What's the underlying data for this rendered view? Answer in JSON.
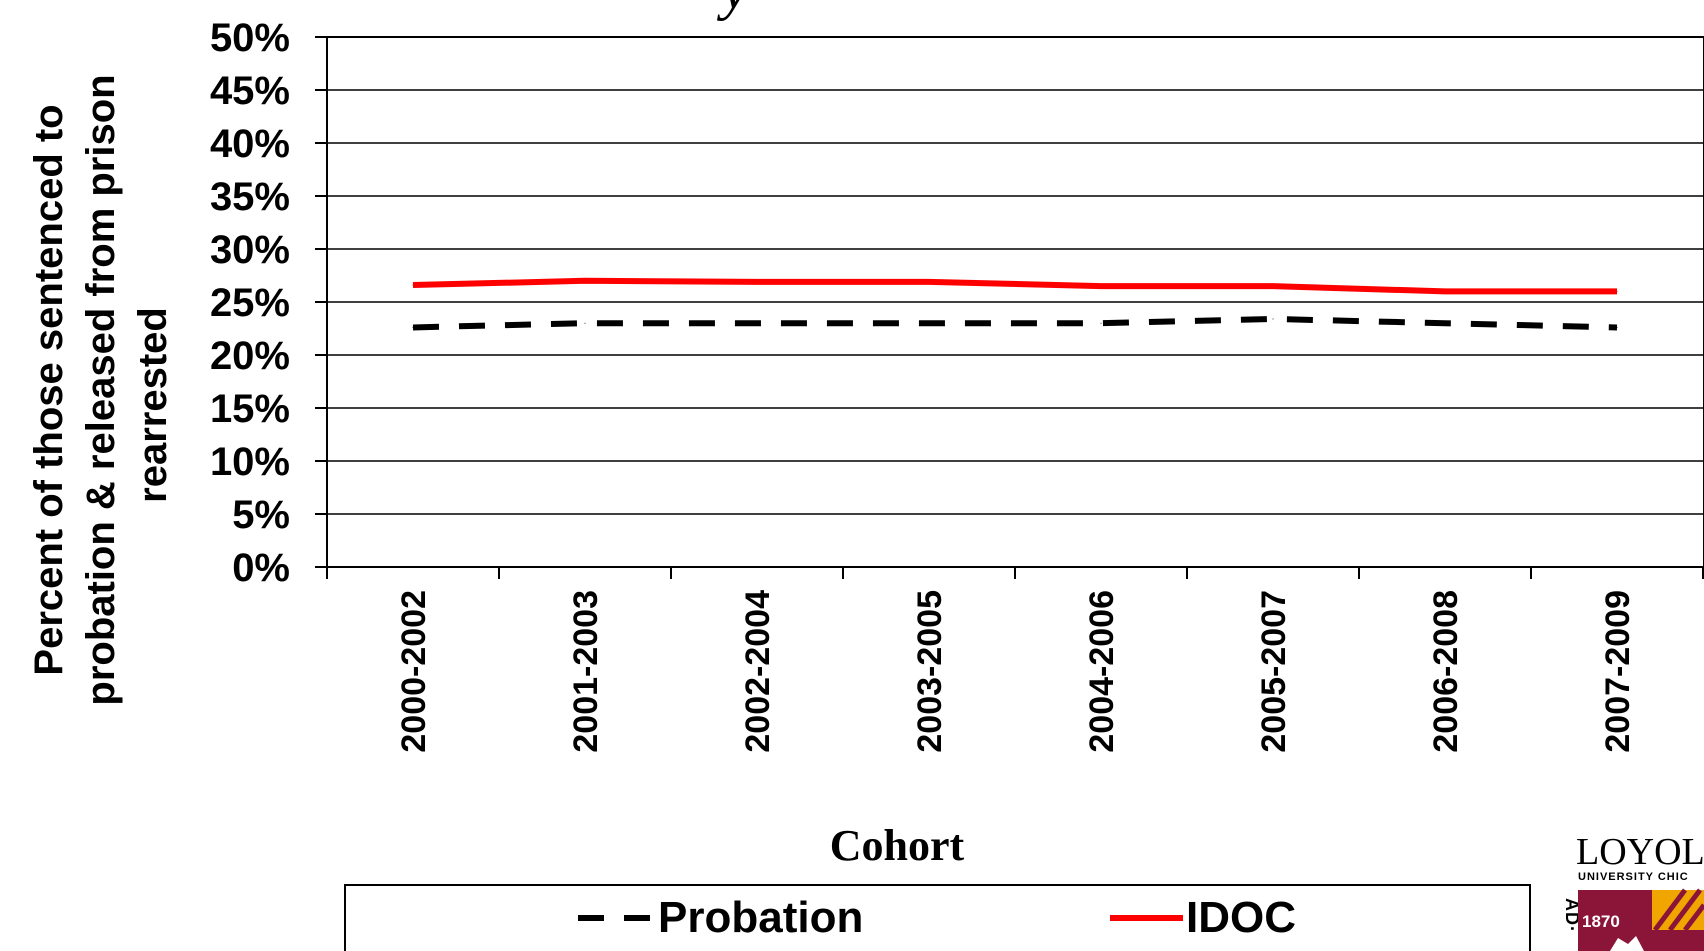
{
  "chart_data": {
    "type": "line",
    "title_fragment": "y",
    "categories": [
      "2000-2002",
      "2001-2003",
      "2002-2004",
      "2003-2005",
      "2004-2006",
      "2005-2007",
      "2006-2008",
      "2007-2009"
    ],
    "series": [
      {
        "name": "Probation",
        "values": [
          22.6,
          23.0,
          23.0,
          23.0,
          23.0,
          23.4,
          23.0,
          22.6
        ],
        "color": "#000000",
        "style": "dashed"
      },
      {
        "name": "IDOC",
        "values": [
          26.6,
          27.0,
          26.9,
          26.9,
          26.5,
          26.5,
          26.0,
          26.0
        ],
        "color": "#ff0000",
        "style": "solid"
      }
    ],
    "yticks": [
      "0%",
      "5%",
      "10%",
      "15%",
      "20%",
      "25%",
      "30%",
      "35%",
      "40%",
      "45%",
      "50%"
    ],
    "ylim": [
      0,
      50
    ],
    "ylabel_lines": [
      "Percent of those sentenced to",
      "probation & released from prison",
      "rearrested"
    ],
    "xlabel": "Cohort",
    "grid": true,
    "legend_position": "bottom"
  },
  "logo": {
    "name": "LOYOL",
    "sub": "UNIVERSITY CHIC",
    "year": "1870",
    "side_text": "AD·"
  },
  "colors": {
    "probation": "#000000",
    "idoc": "#ff0000",
    "grid": "#000000",
    "logo_maroon": "#8a1538",
    "logo_gold": "#f0a500"
  }
}
